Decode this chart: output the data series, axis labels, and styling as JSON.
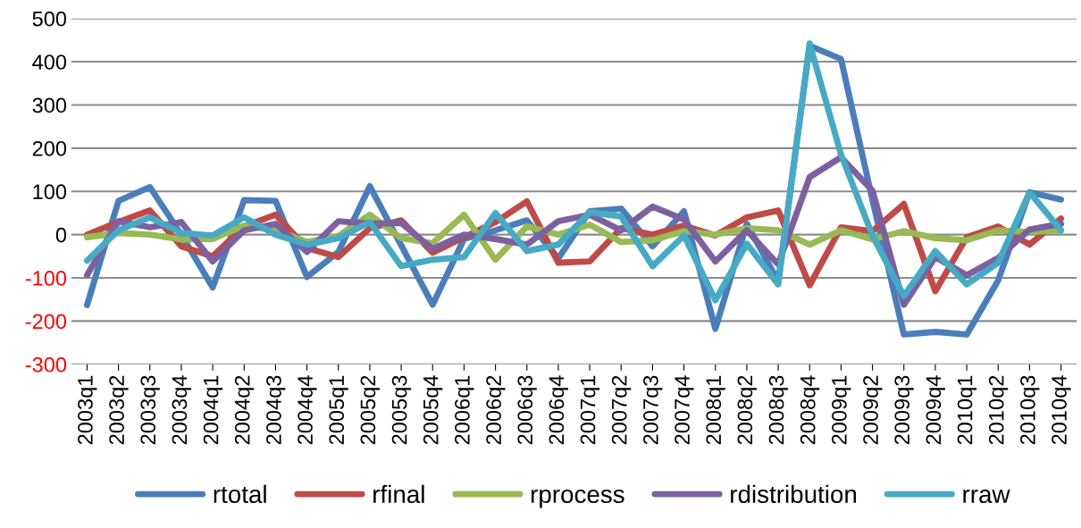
{
  "chart_data": {
    "type": "line",
    "categories": [
      "2003q1",
      "2003q2",
      "2003q3",
      "2003q4",
      "2004q1",
      "2004q2",
      "2004q3",
      "2004q4",
      "2005q1",
      "2005q2",
      "2005q3",
      "2005q4",
      "2006q1",
      "2006q2",
      "2006q3",
      "2006q4",
      "2007q1",
      "2007q2",
      "2007q3",
      "2007q4",
      "2008q1",
      "2008q2",
      "2008q3",
      "2008q4",
      "2009q1",
      "2009q2",
      "2009q3",
      "2009q4",
      "2010q1",
      "2010q2",
      "2010q3",
      "2010q4"
    ],
    "series": [
      {
        "name": "rtotal",
        "color": "#4a7ebb",
        "values": [
          -163,
          78,
          110,
          0,
          -122,
          80,
          78,
          -98,
          -40,
          112,
          -25,
          -162,
          -10,
          10,
          33,
          -55,
          54,
          60,
          -27,
          54,
          -218,
          25,
          -108,
          437,
          406,
          80,
          -231,
          -225,
          -231,
          -106,
          98,
          81
        ]
      },
      {
        "name": "rfinal",
        "color": "#be4b48",
        "values": [
          0,
          29,
          56,
          -27,
          -50,
          19,
          46,
          -31,
          -52,
          15,
          33,
          -42,
          -6,
          29,
          77,
          -65,
          -62,
          15,
          0,
          21,
          -2,
          40,
          56,
          -117,
          17,
          8,
          71,
          -131,
          -6,
          19,
          -23,
          37
        ]
      },
      {
        "name": "rprocess",
        "color": "#98b954",
        "values": [
          -6,
          4,
          0,
          -11,
          -10,
          21,
          10,
          -17,
          -3,
          46,
          -8,
          -20,
          46,
          -58,
          19,
          0,
          23,
          -17,
          -13,
          8,
          0,
          15,
          10,
          -23,
          10,
          -11,
          8,
          -8,
          -13,
          10,
          6,
          10
        ]
      },
      {
        "name": "rdistribution",
        "color": "#7d60a0",
        "values": [
          -94,
          31,
          17,
          29,
          -62,
          10,
          25,
          -40,
          31,
          25,
          27,
          -33,
          0,
          -10,
          -23,
          31,
          46,
          10,
          65,
          35,
          -62,
          10,
          -69,
          133,
          179,
          102,
          -162,
          -52,
          -94,
          -54,
          12,
          25
        ]
      },
      {
        "name": "rraw",
        "color": "#46aac5",
        "values": [
          -60,
          10,
          40,
          4,
          -2,
          40,
          0,
          -23,
          -8,
          29,
          -73,
          -58,
          -52,
          50,
          -38,
          -23,
          52,
          42,
          -73,
          -2,
          -152,
          -21,
          -115,
          442,
          185,
          -2,
          -142,
          -38,
          -115,
          -65,
          98,
          10
        ]
      }
    ],
    "ylim": [
      -300,
      500
    ],
    "yticks": [
      -300,
      -200,
      -100,
      0,
      100,
      200,
      300,
      400,
      500
    ],
    "grid": "y",
    "legend": "bottom",
    "marker": "none",
    "line_style": "solid"
  }
}
